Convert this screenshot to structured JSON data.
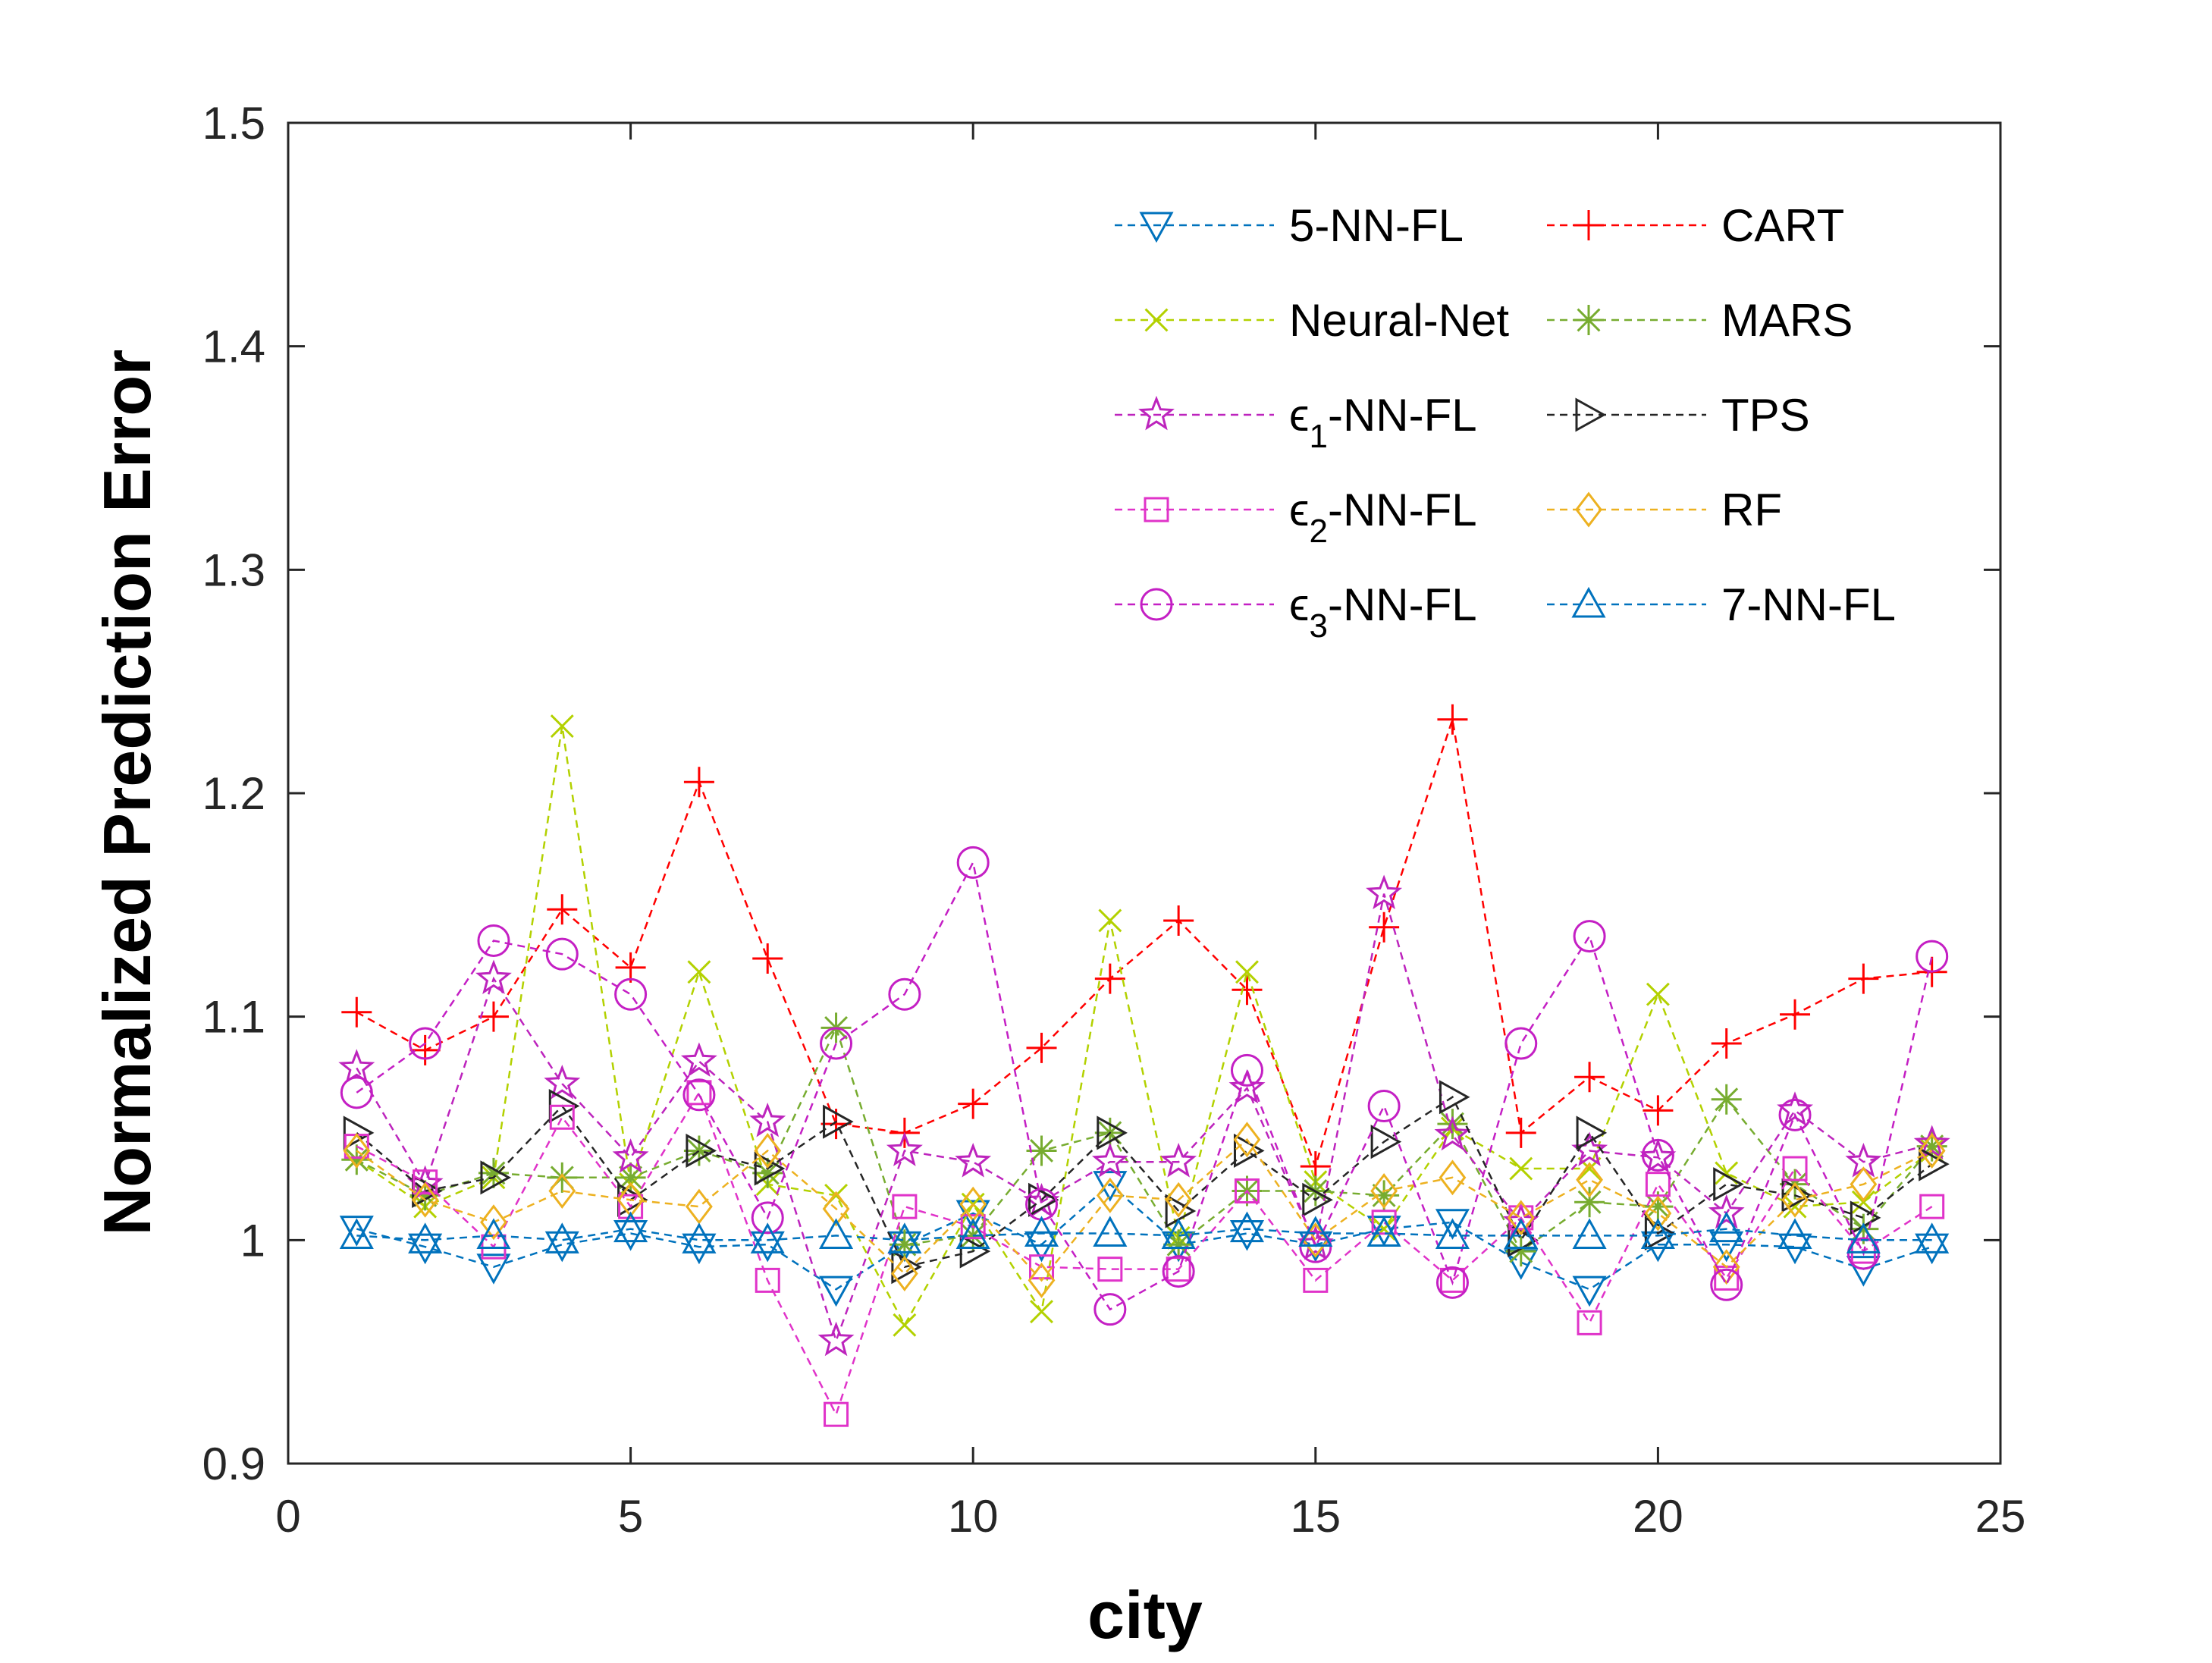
{
  "chart_data": {
    "type": "line",
    "title": "",
    "xlabel": "city",
    "ylabel": "Normalized Prediction Error",
    "xlim": [
      0,
      25
    ],
    "ylim": [
      0.9,
      1.5
    ],
    "xticks": [
      0,
      5,
      10,
      15,
      20,
      25
    ],
    "yticks": [
      0.9,
      1,
      1.1,
      1.2,
      1.3,
      1.4,
      1.5
    ],
    "xtick_labels": [
      "0",
      "5",
      "10",
      "15",
      "20",
      "25"
    ],
    "ytick_labels": [
      "0.9",
      "1",
      "1.1",
      "1.2",
      "1.3",
      "1.4",
      "1.5"
    ],
    "grid": false,
    "legend_placement": "top-right, two columns",
    "x": [
      1,
      2,
      3,
      4,
      5,
      6,
      7,
      8,
      9,
      10,
      11,
      12,
      13,
      14,
      15,
      16,
      17,
      18,
      19,
      20,
      21,
      22,
      23,
      24
    ],
    "series": [
      {
        "name": "5-NN-FL",
        "name_parts": [
          "5-NN-FL"
        ],
        "color": "#0072BD",
        "marker": "triangle-down",
        "values": [
          1.005,
          0.997,
          0.988,
          0.998,
          1.003,
          0.997,
          0.998,
          0.978,
          0.998,
          1.012,
          0.998,
          1.025,
          0.998,
          1.003,
          0.998,
          1.005,
          1.008,
          0.99,
          0.978,
          0.998,
          0.998,
          0.997,
          0.987,
          0.997
        ]
      },
      {
        "name": "CART",
        "name_parts": [
          "CART"
        ],
        "color": "#FF0000",
        "marker": "plus",
        "values": [
          1.102,
          1.085,
          1.1,
          1.148,
          1.122,
          1.205,
          1.126,
          1.052,
          1.048,
          1.061,
          1.086,
          1.117,
          1.143,
          1.112,
          1.033,
          1.14,
          1.233,
          1.048,
          1.073,
          1.058,
          1.088,
          1.101,
          1.117,
          1.12
        ]
      },
      {
        "name": "Neural-Net",
        "name_parts": [
          "Neural-Net"
        ],
        "color": "#B3D100",
        "marker": "x",
        "values": [
          1.036,
          1.015,
          1.028,
          1.23,
          1.025,
          1.12,
          1.025,
          1.02,
          0.962,
          1.016,
          0.968,
          1.143,
          1.001,
          1.12,
          1.026,
          1.005,
          1.05,
          1.032,
          1.032,
          1.11,
          1.03,
          1.015,
          1.017,
          1.04
        ]
      },
      {
        "name": "MARS",
        "name_parts": [
          "MARS"
        ],
        "color": "#77AC30",
        "marker": "asterisk",
        "values": [
          1.036,
          1.02,
          1.03,
          1.028,
          1.028,
          1.04,
          1.03,
          1.095,
          0.998,
          1.002,
          1.04,
          1.048,
          0.998,
          1.022,
          1.022,
          1.02,
          1.052,
          0.995,
          1.017,
          1.015,
          1.063,
          1.025,
          1.005,
          1.042
        ]
      },
      {
        "name": "ε1-NN-FL",
        "name_parts": [
          "ϵ",
          "1",
          "-NN-FL"
        ],
        "color": "#BD24BD",
        "marker": "star",
        "values": [
          1.077,
          1.025,
          1.117,
          1.07,
          1.037,
          1.08,
          1.053,
          0.955,
          1.04,
          1.035,
          1.017,
          1.035,
          1.035,
          1.068,
          0.998,
          1.155,
          1.047,
          1.008,
          1.04,
          1.037,
          1.012,
          1.058,
          1.035,
          1.043
        ]
      },
      {
        "name": "TPS",
        "name_parts": [
          "TPS"
        ],
        "color": "#262626",
        "marker": "triangle-right",
        "values": [
          1.048,
          1.022,
          1.028,
          1.06,
          1.018,
          1.04,
          1.032,
          1.053,
          0.988,
          0.995,
          1.018,
          1.048,
          1.013,
          1.04,
          1.018,
          1.044,
          1.064,
          1.0,
          1.048,
          1.003,
          1.025,
          1.02,
          1.01,
          1.034
        ]
      },
      {
        "name": "ε2-NN-FL",
        "name_parts": [
          "ϵ",
          "2",
          "-NN-FL"
        ],
        "color": "#E033C9",
        "marker": "square",
        "values": [
          1.042,
          1.026,
          0.997,
          1.055,
          1.015,
          1.066,
          0.982,
          0.922,
          1.015,
          1.006,
          0.988,
          0.987,
          0.987,
          1.022,
          0.982,
          1.008,
          0.982,
          1.01,
          0.963,
          1.025,
          0.983,
          1.032,
          0.995,
          1.015
        ]
      },
      {
        "name": "RF",
        "name_parts": [
          "RF"
        ],
        "color": "#EDB120",
        "marker": "diamond",
        "values": [
          1.04,
          1.018,
          1.008,
          1.022,
          1.018,
          1.015,
          1.04,
          1.014,
          0.985,
          1.016,
          0.982,
          1.02,
          1.018,
          1.045,
          1.0,
          1.022,
          1.028,
          1.01,
          1.027,
          1.012,
          0.988,
          1.018,
          1.025,
          1.04
        ]
      },
      {
        "name": "ε3-NN-FL",
        "name_parts": [
          "ϵ",
          "3",
          "-NN-FL"
        ],
        "color": "#C41FC4",
        "marker": "circle",
        "values": [
          1.066,
          1.088,
          1.134,
          1.128,
          1.11,
          1.065,
          1.01,
          1.088,
          1.11,
          1.169,
          1.016,
          0.969,
          0.986,
          1.076,
          0.997,
          1.06,
          0.981,
          1.088,
          1.136,
          1.038,
          0.98,
          1.056,
          0.994,
          1.127
        ]
      },
      {
        "name": "7-NN-FL",
        "name_parts": [
          "7-NN-FL"
        ],
        "color": "#0072BD",
        "marker": "triangle-up",
        "values": [
          1.002,
          1.0,
          1.002,
          1.0,
          1.005,
          1.0,
          1.0,
          1.002,
          1.0,
          1.002,
          1.003,
          1.003,
          1.002,
          1.005,
          1.003,
          1.003,
          1.002,
          1.002,
          1.002,
          1.002,
          1.005,
          1.002,
          1.0,
          1.0
        ]
      }
    ],
    "legend_order": [
      "5-NN-FL",
      "CART",
      "Neural-Net",
      "MARS",
      "ε1-NN-FL",
      "TPS",
      "ε2-NN-FL",
      "RF",
      "ε3-NN-FL",
      "7-NN-FL"
    ]
  }
}
